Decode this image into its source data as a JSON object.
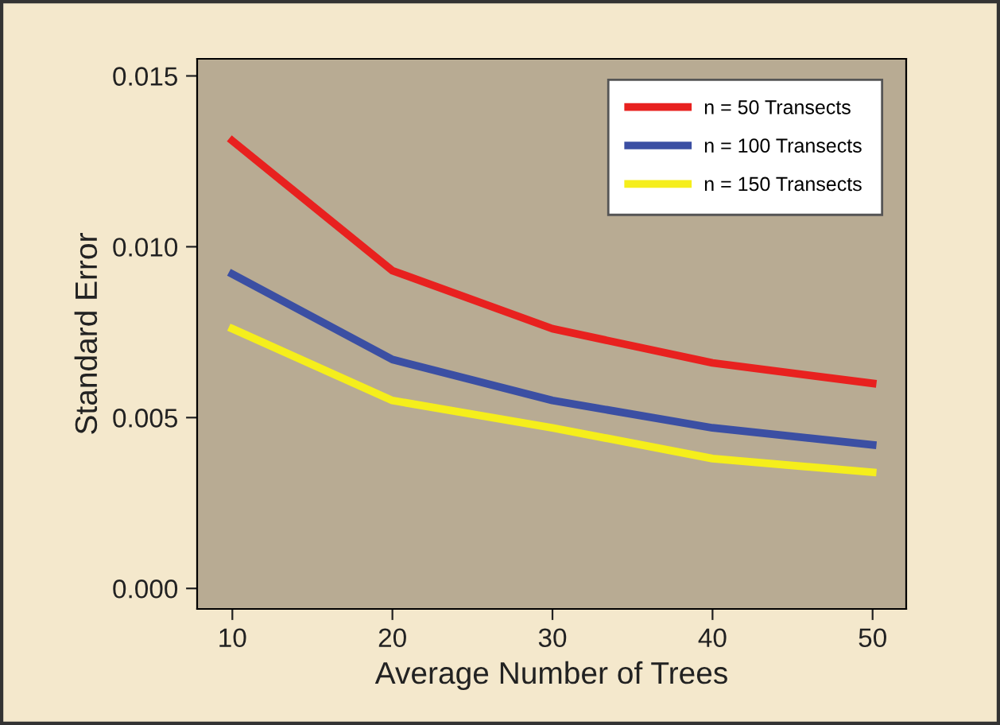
{
  "chart_data": {
    "type": "line",
    "xlabel": "Average Number of Trees",
    "ylabel": "Standard Error",
    "x": [
      10,
      20,
      30,
      40,
      50
    ],
    "series": [
      {
        "name": "n = 50 Transects",
        "color": "#e8211f",
        "values": [
          0.0131,
          0.0093,
          0.0076,
          0.0066,
          0.006
        ]
      },
      {
        "name": "n = 100 Transects",
        "color": "#3b4fa3",
        "values": [
          0.0092,
          0.0067,
          0.0055,
          0.0047,
          0.0042
        ]
      },
      {
        "name": "n = 150 Transects",
        "color": "#f5ee1c",
        "values": [
          0.0076,
          0.0055,
          0.0047,
          0.0038,
          0.0034
        ]
      }
    ],
    "xlim": [
      7.8,
      52.1
    ],
    "ylim": [
      -0.0006,
      0.0155
    ],
    "xticks": [
      10,
      20,
      30,
      40,
      50
    ],
    "yticks": [
      {
        "value": 0,
        "label": "0.000"
      },
      {
        "value": 0.005,
        "label": "0.005"
      },
      {
        "value": 0.01,
        "label": "0.010"
      },
      {
        "value": 0.015,
        "label": "0.015"
      }
    ],
    "legend": "top right",
    "marker": "none",
    "line_style": "solid",
    "grid": false
  }
}
